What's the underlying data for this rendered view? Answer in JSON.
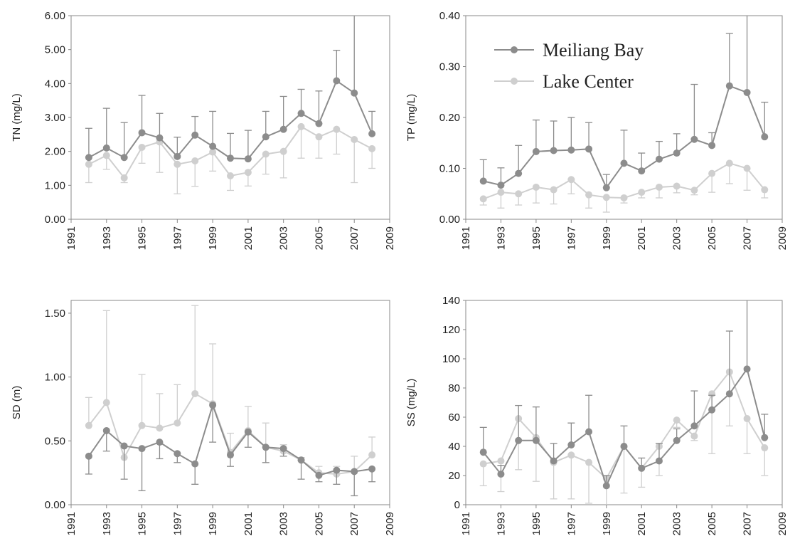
{
  "chart_data": [
    {
      "type": "line",
      "ylabel": "TN (mg/L)",
      "x": [
        1992,
        1993,
        1994,
        1995,
        1996,
        1997,
        1998,
        1999,
        2000,
        2001,
        2002,
        2003,
        2004,
        2005,
        2006,
        2007,
        2008
      ],
      "xlim": [
        1991,
        2009
      ],
      "xticks": [
        1991,
        1993,
        1995,
        1997,
        1999,
        2001,
        2003,
        2005,
        2007,
        2009
      ],
      "ylim": [
        0,
        6
      ],
      "yticks": [
        {
          "value": 0,
          "label": "0.00"
        },
        {
          "value": 1,
          "label": "1.00"
        },
        {
          "value": 2,
          "label": "2.00"
        },
        {
          "value": 3,
          "label": "3.00"
        },
        {
          "value": 4,
          "label": "4.00"
        },
        {
          "value": 5,
          "label": "5.00"
        },
        {
          "value": 6,
          "label": "6.00"
        }
      ],
      "series": [
        {
          "name": "Meiliang Bay",
          "color": "#8c8c8c",
          "error_direction": "up",
          "values": [
            1.82,
            2.1,
            1.82,
            2.55,
            2.4,
            1.85,
            2.48,
            2.15,
            1.8,
            1.78,
            2.43,
            2.65,
            3.12,
            2.82,
            4.08,
            3.72,
            2.52
          ],
          "errors": [
            0.86,
            1.17,
            1.03,
            1.1,
            0.72,
            0.57,
            0.55,
            1.03,
            0.73,
            0.84,
            0.75,
            0.97,
            0.71,
            0.96,
            0.9,
            2.4,
            0.66
          ]
        },
        {
          "name": "Lake Center",
          "color": "#cfcfcf",
          "error_direction": "down",
          "values": [
            1.62,
            1.88,
            1.22,
            2.12,
            2.28,
            1.62,
            1.72,
            1.98,
            1.28,
            1.38,
            1.92,
            2.0,
            2.73,
            2.43,
            2.65,
            2.35,
            2.08
          ],
          "errors": [
            0.54,
            0.41,
            0.14,
            0.47,
            0.9,
            0.87,
            0.75,
            0.56,
            0.43,
            0.4,
            0.59,
            0.78,
            0.93,
            0.63,
            0.73,
            1.27,
            0.58
          ]
        }
      ]
    },
    {
      "type": "line",
      "ylabel": "TP (mg/L)",
      "legend": "upper left",
      "x": [
        1992,
        1993,
        1994,
        1995,
        1996,
        1997,
        1998,
        1999,
        2000,
        2001,
        2002,
        2003,
        2004,
        2005,
        2006,
        2007,
        2008
      ],
      "xlim": [
        1991,
        2009
      ],
      "xticks": [
        1991,
        1993,
        1995,
        1997,
        1999,
        2001,
        2003,
        2005,
        2007,
        2009
      ],
      "ylim": [
        0,
        0.4
      ],
      "yticks": [
        {
          "value": 0,
          "label": "0.00"
        },
        {
          "value": 0.1,
          "label": "0.10"
        },
        {
          "value": 0.2,
          "label": "0.20"
        },
        {
          "value": 0.3,
          "label": "0.30"
        },
        {
          "value": 0.4,
          "label": "0.40"
        }
      ],
      "series": [
        {
          "name": "Meiliang Bay",
          "color": "#8c8c8c",
          "error_direction": "up",
          "values": [
            0.075,
            0.067,
            0.09,
            0.133,
            0.135,
            0.136,
            0.138,
            0.062,
            0.11,
            0.095,
            0.118,
            0.13,
            0.157,
            0.145,
            0.262,
            0.249,
            0.162
          ],
          "errors": [
            0.042,
            0.034,
            0.055,
            0.062,
            0.058,
            0.064,
            0.052,
            0.026,
            0.065,
            0.035,
            0.035,
            0.038,
            0.108,
            0.025,
            0.103,
            0.161,
            0.068
          ]
        },
        {
          "name": "Lake Center",
          "color": "#cfcfcf",
          "error_direction": "down",
          "values": [
            0.04,
            0.053,
            0.05,
            0.063,
            0.058,
            0.078,
            0.048,
            0.043,
            0.042,
            0.053,
            0.063,
            0.065,
            0.057,
            0.09,
            0.11,
            0.1,
            0.058
          ],
          "errors": [
            0.012,
            0.031,
            0.022,
            0.031,
            0.028,
            0.028,
            0.026,
            0.029,
            0.01,
            0.011,
            0.021,
            0.013,
            0.009,
            0.037,
            0.04,
            0.043,
            0.016
          ]
        }
      ]
    },
    {
      "type": "line",
      "ylabel": "SD (m)",
      "x": [
        1992,
        1993,
        1994,
        1995,
        1996,
        1997,
        1998,
        1999,
        2000,
        2001,
        2002,
        2003,
        2004,
        2005,
        2006,
        2007,
        2008
      ],
      "xlim": [
        1991,
        2009
      ],
      "xticks": [
        1991,
        1993,
        1995,
        1997,
        1999,
        2001,
        2003,
        2005,
        2007,
        2009
      ],
      "ylim": [
        0,
        1.6
      ],
      "yticks": [
        {
          "value": 0,
          "label": "0.00"
        },
        {
          "value": 0.5,
          "label": "0.50"
        },
        {
          "value": 1,
          "label": "1.00"
        },
        {
          "value": 1.5,
          "label": "1.50"
        }
      ],
      "series": [
        {
          "name": "Meiliang Bay",
          "color": "#8c8c8c",
          "error_direction": "down",
          "values": [
            0.38,
            0.58,
            0.46,
            0.44,
            0.49,
            0.4,
            0.32,
            0.78,
            0.39,
            0.57,
            0.45,
            0.44,
            0.35,
            0.23,
            0.27,
            0.26,
            0.28
          ],
          "errors": [
            0.14,
            0.16,
            0.26,
            0.33,
            0.13,
            0.07,
            0.16,
            0.29,
            0.09,
            0.12,
            0.12,
            0.06,
            0.15,
            0.05,
            0.11,
            0.19,
            0.1
          ]
        },
        {
          "name": "Lake Center",
          "color": "#cfcfcf",
          "error_direction": "up",
          "values": [
            0.62,
            0.8,
            0.37,
            0.62,
            0.6,
            0.64,
            0.87,
            0.79,
            0.41,
            0.58,
            0.45,
            0.42,
            0.35,
            0.25,
            0.24,
            0.26,
            0.39
          ],
          "errors": [
            0.22,
            0.72,
            0.09,
            0.4,
            0.27,
            0.3,
            0.69,
            0.47,
            0.15,
            0.19,
            0.19,
            0.05,
            0.02,
            0.05,
            0.06,
            0.12,
            0.14
          ]
        }
      ]
    },
    {
      "type": "line",
      "ylabel": "SS (mg/L)",
      "x": [
        1992,
        1993,
        1994,
        1995,
        1996,
        1997,
        1998,
        1999,
        2000,
        2001,
        2002,
        2003,
        2004,
        2005,
        2006,
        2007,
        2008
      ],
      "xlim": [
        1991,
        2009
      ],
      "xticks": [
        1991,
        1993,
        1995,
        1997,
        1999,
        2001,
        2003,
        2005,
        2007,
        2009
      ],
      "ylim": [
        0,
        140
      ],
      "yticks": [
        0,
        20,
        40,
        60,
        80,
        100,
        120,
        140
      ],
      "series": [
        {
          "name": "Meiliang Bay",
          "color": "#8c8c8c",
          "error_direction": "up",
          "values": [
            36,
            21,
            44,
            44,
            30,
            41,
            50,
            13,
            40,
            25,
            30,
            44,
            54,
            65,
            76,
            93,
            46
          ],
          "errors": [
            17,
            6,
            24,
            23,
            12,
            15,
            25,
            7,
            14,
            7,
            12,
            8,
            24,
            10,
            43,
            52,
            16
          ]
        },
        {
          "name": "Lake Center",
          "color": "#cfcfcf",
          "error_direction": "down",
          "values": [
            28,
            30,
            59,
            46,
            29,
            34,
            29,
            18,
            40,
            25,
            40,
            58,
            47,
            76,
            91,
            59,
            39
          ],
          "errors": [
            15,
            21,
            35,
            30,
            25,
            30,
            28,
            19,
            32,
            13,
            20,
            5,
            3,
            41,
            37,
            24,
            19
          ]
        }
      ]
    }
  ]
}
